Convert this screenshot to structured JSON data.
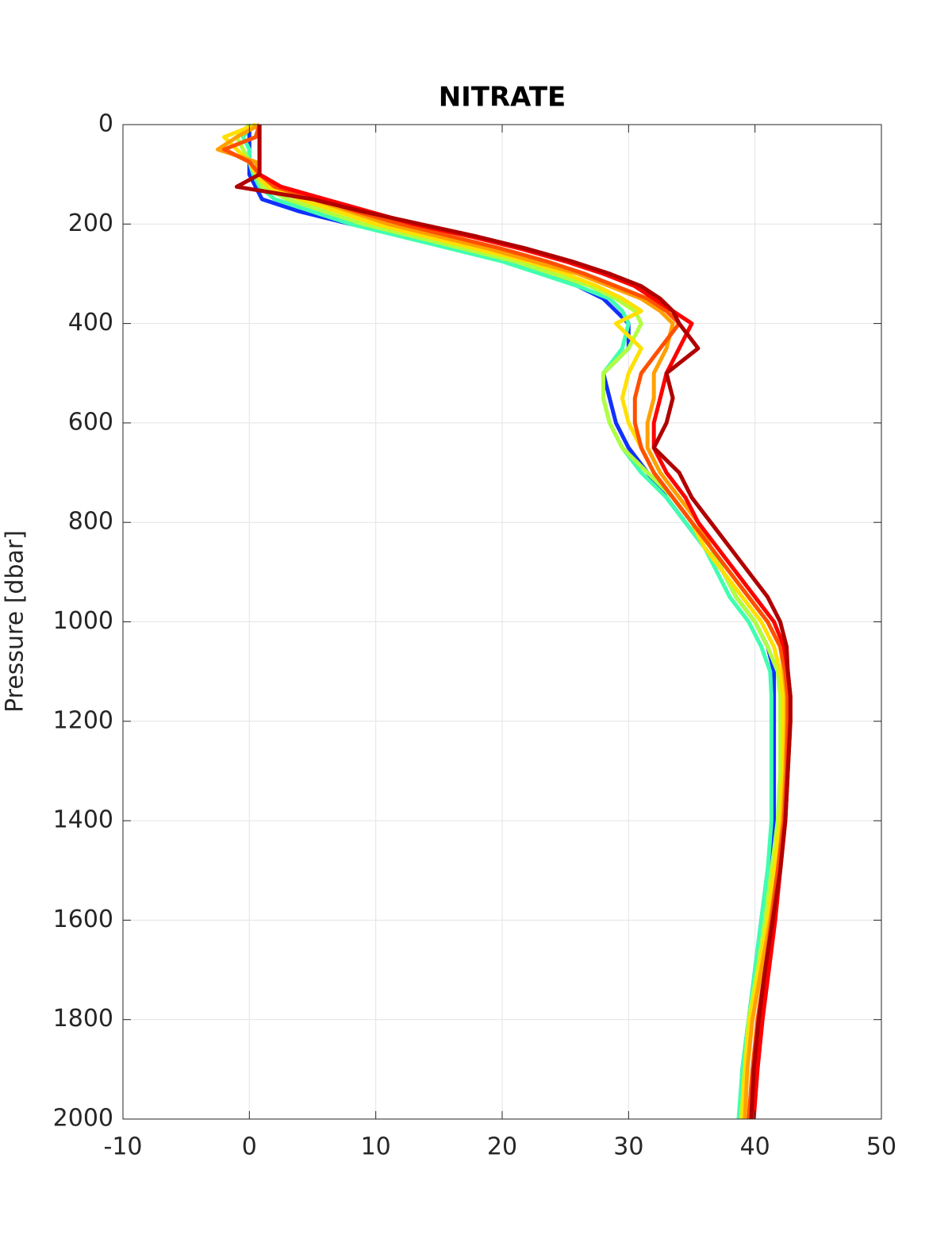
{
  "chart_data": {
    "type": "line",
    "orientation": "vertical-profile",
    "title": "NITRATE",
    "ylabel": "Pressure [dbar]",
    "y": [
      0,
      25,
      50,
      75,
      100,
      125,
      150,
      175,
      200,
      225,
      250,
      275,
      300,
      325,
      350,
      375,
      400,
      450,
      500,
      550,
      600,
      650,
      700,
      750,
      800,
      850,
      900,
      950,
      1000,
      1050,
      1100,
      1150,
      1200,
      1300,
      1400,
      1500,
      1600,
      1700,
      1800,
      1900,
      2000
    ],
    "series": [
      {
        "color": "#1030ff",
        "values": [
          0,
          0,
          0,
          0,
          0,
          0.5,
          1,
          4,
          8,
          13,
          17,
          21,
          24,
          26,
          28,
          29,
          30,
          30,
          28,
          28.5,
          29,
          30,
          31.5,
          33,
          34.5,
          36,
          37.5,
          38.5,
          40,
          41,
          41.5,
          41.5,
          41.5,
          41.5,
          41.5,
          41,
          40.5,
          40,
          39.5,
          39,
          38.8
        ]
      },
      {
        "color": "#40ffb0",
        "values": [
          0.2,
          -0.5,
          0,
          0,
          0.3,
          0.8,
          2,
          5,
          8,
          12,
          16,
          20,
          23,
          26,
          28.5,
          29.5,
          30,
          29.5,
          28,
          28,
          28.5,
          29.5,
          31,
          33,
          34.5,
          36,
          37,
          38,
          39.5,
          40.5,
          41.2,
          41.3,
          41.3,
          41.3,
          41.3,
          41,
          40.5,
          40,
          39.5,
          39,
          38.7
        ]
      },
      {
        "color": "#b0ff40",
        "values": [
          0,
          -1,
          -0.5,
          0,
          0.5,
          1,
          3,
          6,
          9,
          13,
          17,
          21,
          24,
          27,
          29,
          30.5,
          31,
          30,
          28,
          28,
          28.5,
          29.5,
          31.5,
          33.5,
          35,
          36.5,
          37.5,
          38.5,
          40,
          41,
          41.8,
          42,
          42,
          42,
          41.8,
          41.3,
          40.8,
          40.2,
          39.5,
          39.2,
          38.9
        ]
      },
      {
        "color": "#ffe000",
        "values": [
          0.5,
          -2,
          -1,
          0,
          0.5,
          1.5,
          4,
          7,
          10,
          14,
          18,
          22,
          25,
          27.5,
          29.5,
          31,
          29,
          31,
          30,
          29.5,
          30,
          31,
          32,
          33.5,
          35,
          36,
          37.5,
          39,
          40.5,
          41.5,
          42,
          42.2,
          42.2,
          42.2,
          42,
          41.5,
          41,
          40.3,
          39.6,
          39.2,
          39
        ]
      },
      {
        "color": "#ffa000",
        "values": [
          0.8,
          -1,
          -2.5,
          0.5,
          0.8,
          2,
          5,
          8,
          11,
          15,
          19,
          22.5,
          26,
          28.5,
          31,
          32.5,
          33.5,
          33,
          32,
          32,
          31.5,
          31.5,
          32.5,
          34,
          35.5,
          36.5,
          38,
          39.5,
          41,
          42,
          42.3,
          42.5,
          42.5,
          42.4,
          42.2,
          41.8,
          41.2,
          40.5,
          39.8,
          39.4,
          39.2
        ]
      },
      {
        "color": "#ff5000",
        "values": [
          0.8,
          0.5,
          -2,
          0,
          0.8,
          2,
          5.5,
          8.5,
          12,
          16,
          20,
          23.5,
          26.5,
          29,
          31.5,
          33,
          34,
          32.5,
          31,
          30.5,
          30.5,
          31,
          32,
          33.5,
          35,
          36.5,
          38,
          39.5,
          41,
          42,
          42.4,
          42.6,
          42.6,
          42.5,
          42.3,
          41.8,
          41.3,
          40.8,
          40.2,
          39.8,
          39.5
        ]
      },
      {
        "color": "#ff0000",
        "values": [
          0.8,
          0.8,
          0.8,
          0.8,
          0.8,
          2.5,
          6,
          9.5,
          13,
          17.5,
          21.5,
          25,
          28,
          30.5,
          32,
          33.5,
          35,
          34,
          33,
          32.5,
          32,
          32,
          33,
          34.5,
          35.5,
          37,
          38.5,
          40,
          41.5,
          42.3,
          42.6,
          42.8,
          42.8,
          42.6,
          42.4,
          42,
          41.6,
          41.1,
          40.6,
          40.2,
          39.9
        ]
      },
      {
        "color": "#b00000",
        "values": [
          0.8,
          0.8,
          0.8,
          0.8,
          0.8,
          -1,
          5,
          9,
          13.5,
          18,
          22,
          25.5,
          28.5,
          31,
          32.5,
          33.5,
          34,
          35.5,
          33,
          33.5,
          33,
          32,
          34,
          35,
          36.5,
          38,
          39.5,
          41,
          42,
          42.5,
          42.6,
          42.8,
          42.8,
          42.6,
          42.4,
          42,
          41.4,
          40.8,
          40.3,
          39.9,
          39.7
        ]
      }
    ],
    "xlim": [
      -10,
      50
    ],
    "xticks": [
      -10,
      0,
      10,
      20,
      30,
      40,
      50
    ],
    "ylim": [
      0,
      2000
    ],
    "yticks": [
      0,
      200,
      400,
      600,
      800,
      1000,
      1200,
      1400,
      1600,
      1800,
      2000
    ],
    "y_reversed": true,
    "grid": true
  }
}
